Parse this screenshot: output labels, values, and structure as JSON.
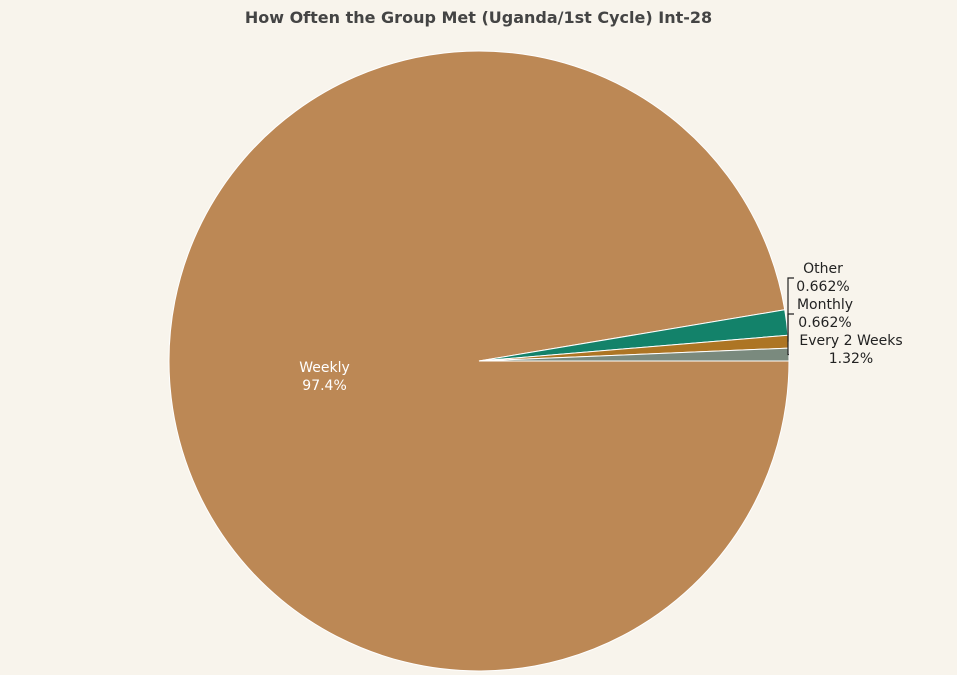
{
  "chart_data": {
    "type": "pie",
    "title": "How Often the Group Met (Uganda/1st Cycle) Int-28",
    "slices": [
      {
        "label": "Weekly",
        "value": 97.4,
        "display": "97.4%",
        "color": "#bc8855"
      },
      {
        "label": "Every 2 Weeks",
        "value": 1.32,
        "display": "1.32%",
        "color": "#13826a"
      },
      {
        "label": "Monthly",
        "value": 0.662,
        "display": "0.662%",
        "color": "#ad7524"
      },
      {
        "label": "Other",
        "value": 0.662,
        "display": "0.662%",
        "color": "#7a8a7e"
      }
    ]
  }
}
